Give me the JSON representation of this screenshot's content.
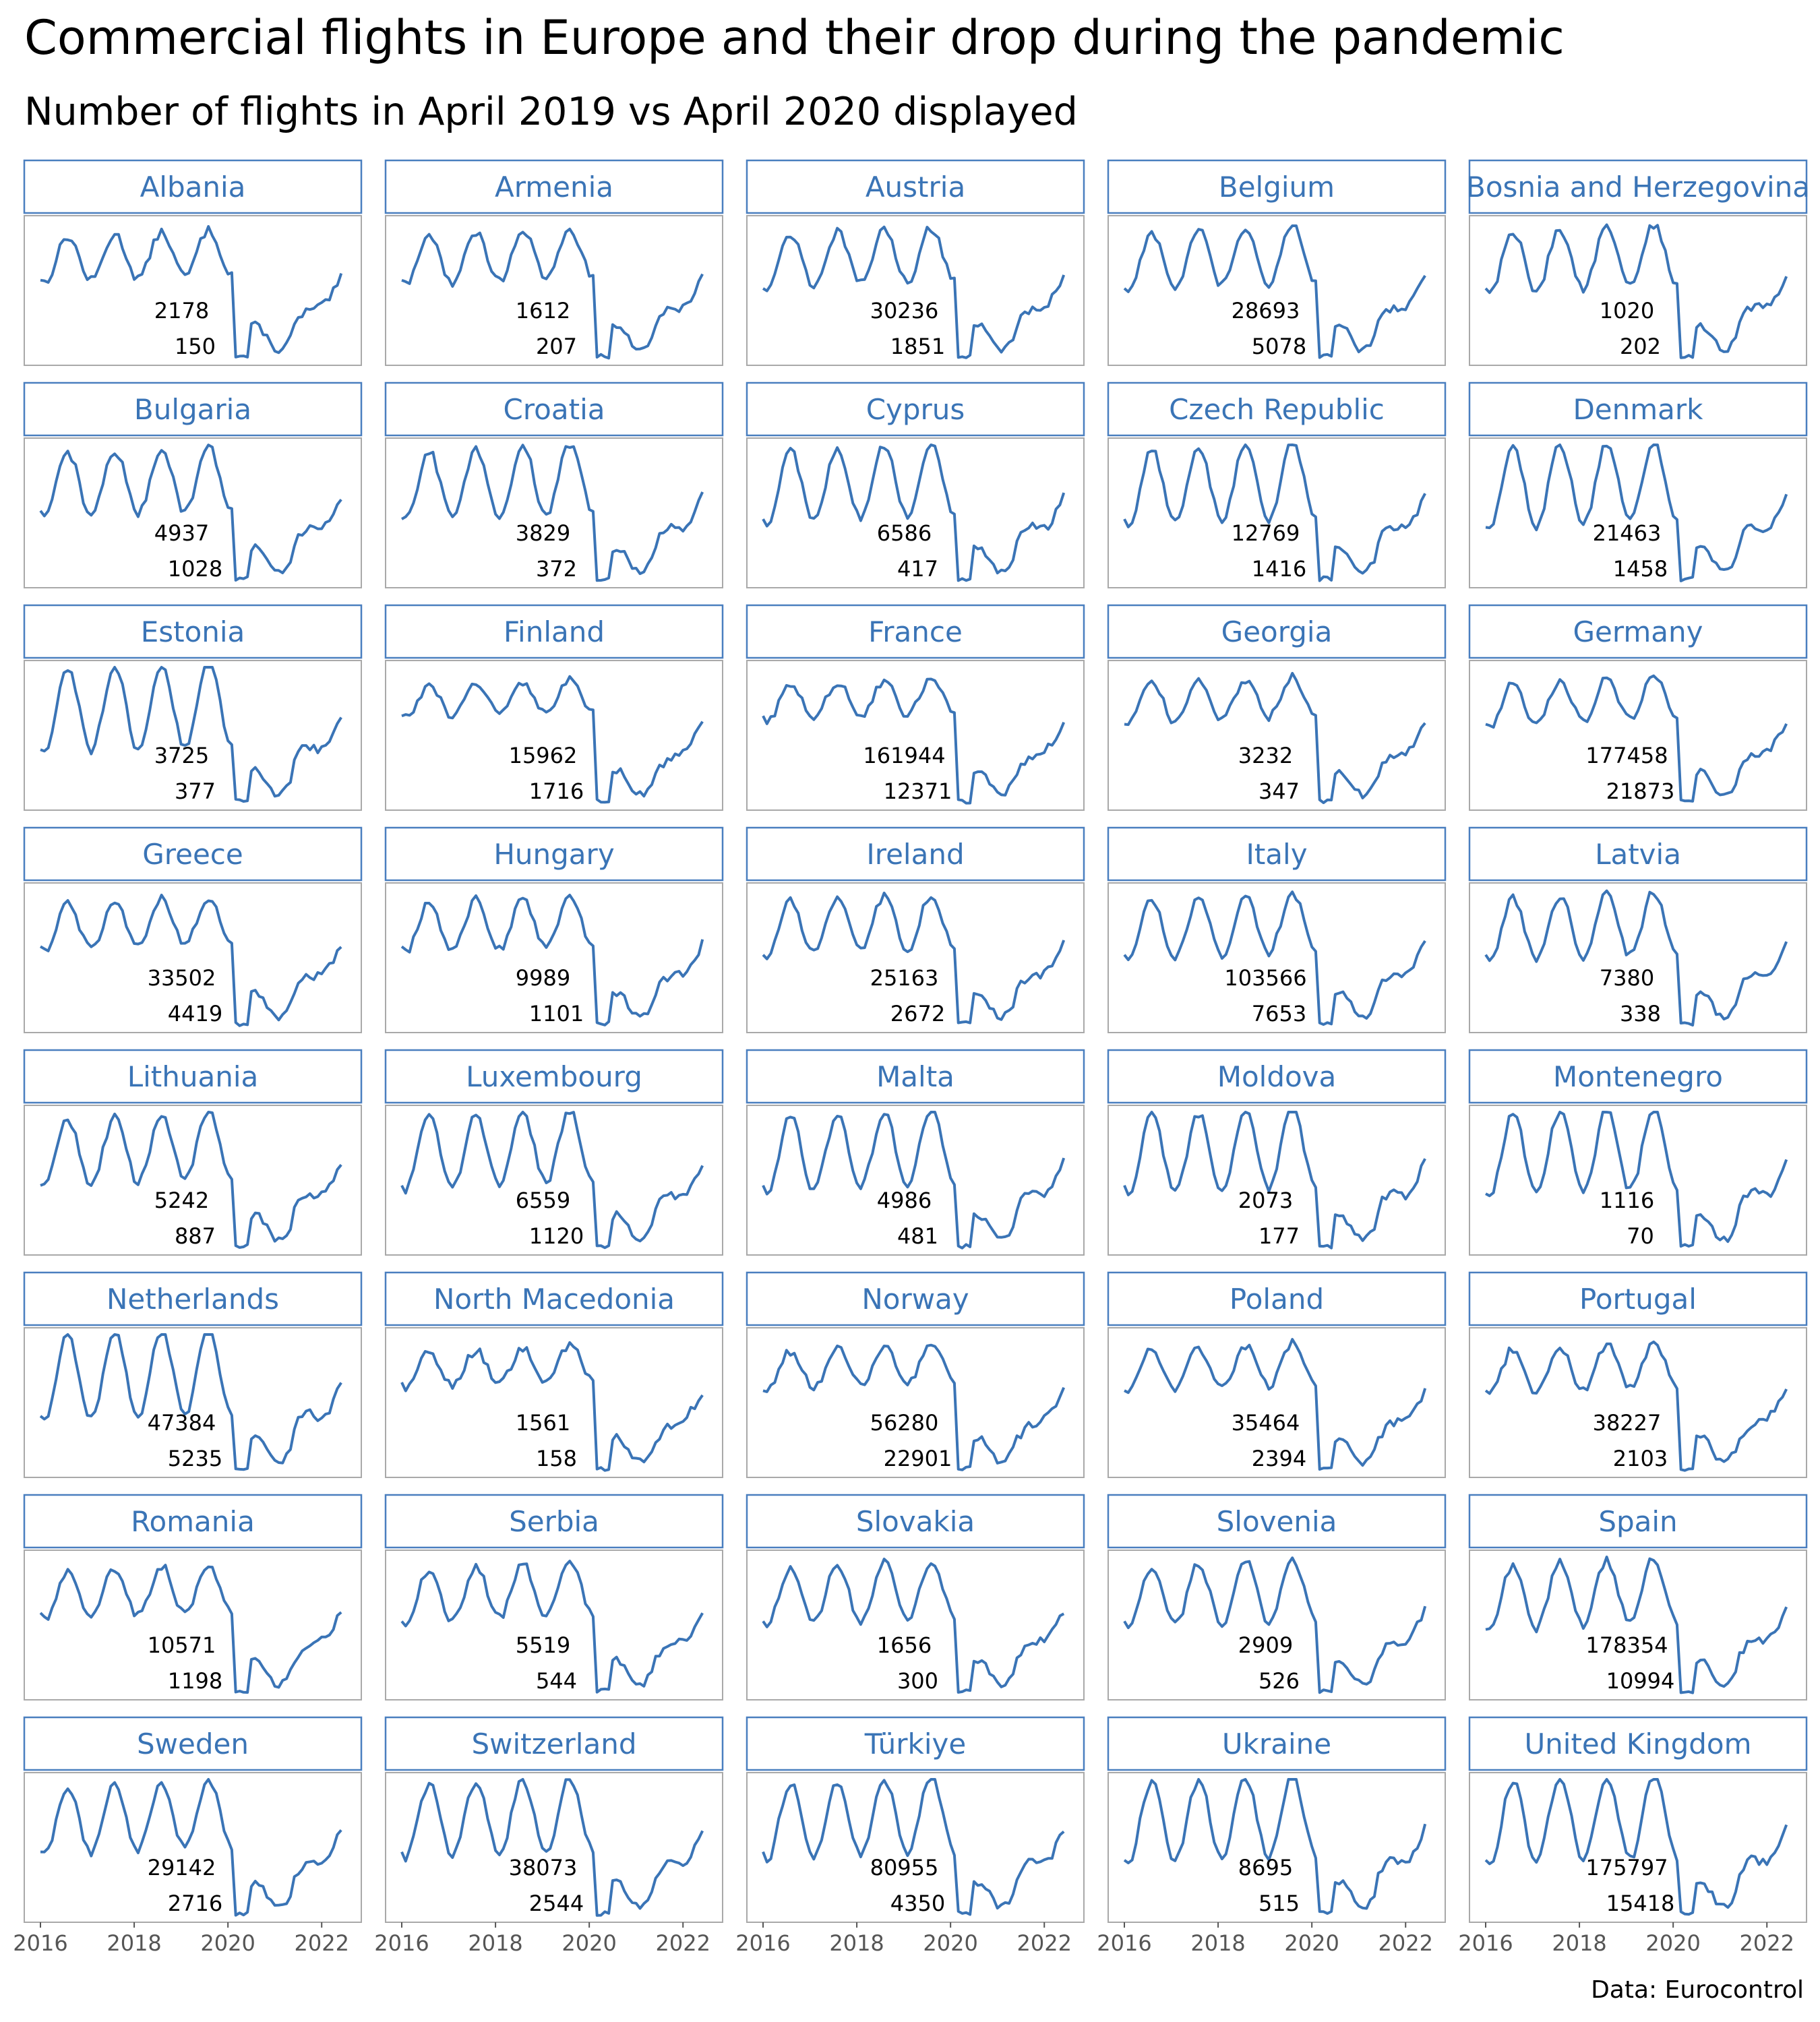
{
  "title": "Commercial flights in Europe and their drop during the pandemic",
  "subtitle": "Number of flights in April 2019 vs April 2020 displayed",
  "source": "Data: Eurocontrol",
  "colors": {
    "line": "#3a74b6",
    "header_text": "#3a74b6",
    "frame": "#4a7fbf",
    "panel_border": "#a9a9a9",
    "label_text": "#000000"
  },
  "chart_data": {
    "type": "line",
    "layout": "small-multiples",
    "x_ticks": [
      2016,
      2018,
      2020,
      2022
    ],
    "x_range": [
      2016,
      2022.5
    ],
    "panels": [
      {
        "name": "Albania",
        "apr2019": 2178,
        "apr2020": 150
      },
      {
        "name": "Armenia",
        "apr2019": 1612,
        "apr2020": 207
      },
      {
        "name": "Austria",
        "apr2019": 30236,
        "apr2020": 1851
      },
      {
        "name": "Belgium",
        "apr2019": 28693,
        "apr2020": 5078
      },
      {
        "name": "Bosnia and Herzegovina",
        "apr2019": 1020,
        "apr2020": 202
      },
      {
        "name": "Bulgaria",
        "apr2019": 4937,
        "apr2020": 1028
      },
      {
        "name": "Croatia",
        "apr2019": 3829,
        "apr2020": 372
      },
      {
        "name": "Cyprus",
        "apr2019": 6586,
        "apr2020": 417
      },
      {
        "name": "Czech Republic",
        "apr2019": 12769,
        "apr2020": 1416
      },
      {
        "name": "Denmark",
        "apr2019": 21463,
        "apr2020": 1458
      },
      {
        "name": "Estonia",
        "apr2019": 3725,
        "apr2020": 377
      },
      {
        "name": "Finland",
        "apr2019": 15962,
        "apr2020": 1716
      },
      {
        "name": "France",
        "apr2019": 161944,
        "apr2020": 12371
      },
      {
        "name": "Georgia",
        "apr2019": 3232,
        "apr2020": 347
      },
      {
        "name": "Germany",
        "apr2019": 177458,
        "apr2020": 21873
      },
      {
        "name": "Greece",
        "apr2019": 33502,
        "apr2020": 4419
      },
      {
        "name": "Hungary",
        "apr2019": 9989,
        "apr2020": 1101
      },
      {
        "name": "Ireland",
        "apr2019": 25163,
        "apr2020": 2672
      },
      {
        "name": "Italy",
        "apr2019": 103566,
        "apr2020": 7653
      },
      {
        "name": "Latvia",
        "apr2019": 7380,
        "apr2020": 338
      },
      {
        "name": "Lithuania",
        "apr2019": 5242,
        "apr2020": 887
      },
      {
        "name": "Luxembourg",
        "apr2019": 6559,
        "apr2020": 1120
      },
      {
        "name": "Malta",
        "apr2019": 4986,
        "apr2020": 481
      },
      {
        "name": "Moldova",
        "apr2019": 2073,
        "apr2020": 177
      },
      {
        "name": "Montenegro",
        "apr2019": 1116,
        "apr2020": 70
      },
      {
        "name": "Netherlands",
        "apr2019": 47384,
        "apr2020": 5235
      },
      {
        "name": "North Macedonia",
        "apr2019": 1561,
        "apr2020": 158
      },
      {
        "name": "Norway",
        "apr2019": 56280,
        "apr2020": 22901
      },
      {
        "name": "Poland",
        "apr2019": 35464,
        "apr2020": 2394
      },
      {
        "name": "Portugal",
        "apr2019": 38227,
        "apr2020": 2103
      },
      {
        "name": "Romania",
        "apr2019": 10571,
        "apr2020": 1198
      },
      {
        "name": "Serbia",
        "apr2019": 5519,
        "apr2020": 544
      },
      {
        "name": "Slovakia",
        "apr2019": 1656,
        "apr2020": 300
      },
      {
        "name": "Slovenia",
        "apr2019": 2909,
        "apr2020": 526
      },
      {
        "name": "Spain",
        "apr2019": 178354,
        "apr2020": 10994
      },
      {
        "name": "Sweden",
        "apr2019": 29142,
        "apr2020": 2716
      },
      {
        "name": "Switzerland",
        "apr2019": 38073,
        "apr2020": 2544
      },
      {
        "name": "Türkiye",
        "apr2019": 80955,
        "apr2020": 4350
      },
      {
        "name": "Ukraine",
        "apr2019": 8695,
        "apr2020": 515
      },
      {
        "name": "United Kingdom",
        "apr2019": 175797,
        "apr2020": 15418
      }
    ]
  }
}
